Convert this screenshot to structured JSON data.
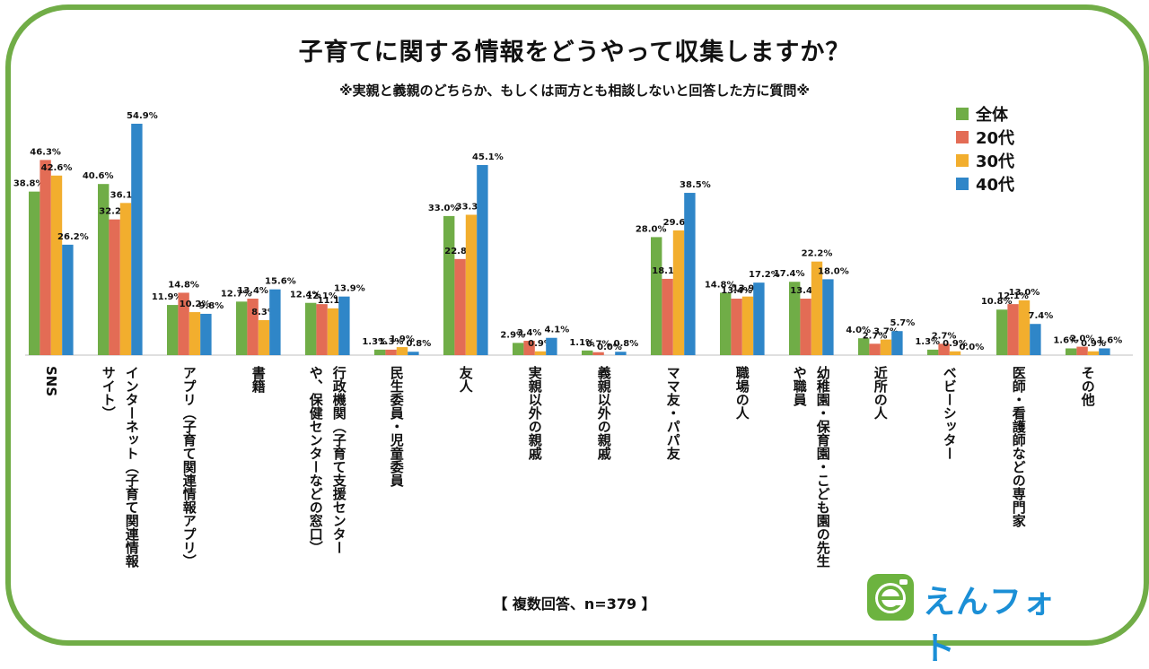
{
  "title": "子育てに関する情報をどうやって収集しますか？",
  "subtitle": "※実親と義親のどちらか、もしくは両方とも相談しないと回答した方に質問※",
  "footnote": "【 複数回答、n=379 】",
  "logo": {
    "text": "えんフォト",
    "icon_letter": "e"
  },
  "colors": {
    "frame": "#71ad47",
    "series": [
      "#70ad47",
      "#e36c55",
      "#f2ae2e",
      "#2f86c8"
    ],
    "logo_text": "#1b8fd6",
    "logo_icon": "#6cb33f"
  },
  "chart_data": {
    "type": "bar",
    "title": "子育てに関する情報をどうやって収集しますか？",
    "categories": [
      [
        "SNS"
      ],
      [
        "インターネット（子育て関連情報",
        "サイト）"
      ],
      [
        "アプリ（子育て関連情報アプリ）"
      ],
      [
        "書籍"
      ],
      [
        "行政機関（子育て支援センター",
        "や、保健センターなどの窓口）"
      ],
      [
        "民生委員・児童委員"
      ],
      [
        "友人"
      ],
      [
        "実親以外の親戚"
      ],
      [
        "義親以外の親戚"
      ],
      [
        "ママ友・パパ友"
      ],
      [
        "職場の人"
      ],
      [
        "幼稚園・保育園・こども園の先生",
        "や職員"
      ],
      [
        "近所の人"
      ],
      [
        "ベビーシッター"
      ],
      [
        "医師・看護師などの専門家"
      ],
      [
        "その他"
      ]
    ],
    "series": [
      {
        "name": "全体",
        "values": [
          38.8,
          40.6,
          11.9,
          12.7,
          12.4,
          1.3,
          33.0,
          2.9,
          1.1,
          28.0,
          14.8,
          17.4,
          4.0,
          1.3,
          10.8,
          1.6
        ]
      },
      {
        "name": "20代",
        "values": [
          46.3,
          32.2,
          14.8,
          13.4,
          12.1,
          1.3,
          22.8,
          3.4,
          0.7,
          18.1,
          13.4,
          13.4,
          2.7,
          2.7,
          12.1,
          2.0
        ]
      },
      {
        "name": "30代",
        "values": [
          42.6,
          36.1,
          10.2,
          8.3,
          11.1,
          1.9,
          33.3,
          0.9,
          0.0,
          29.6,
          13.9,
          22.2,
          3.7,
          0.9,
          13.0,
          0.9
        ]
      },
      {
        "name": "40代",
        "values": [
          26.2,
          54.9,
          9.8,
          15.6,
          13.9,
          0.8,
          45.1,
          4.1,
          0.8,
          38.5,
          17.2,
          18.0,
          5.7,
          0.0,
          7.4,
          1.6
        ]
      }
    ],
    "unit": "%",
    "ylim": [
      0,
      56
    ],
    "legend": "top-right"
  }
}
